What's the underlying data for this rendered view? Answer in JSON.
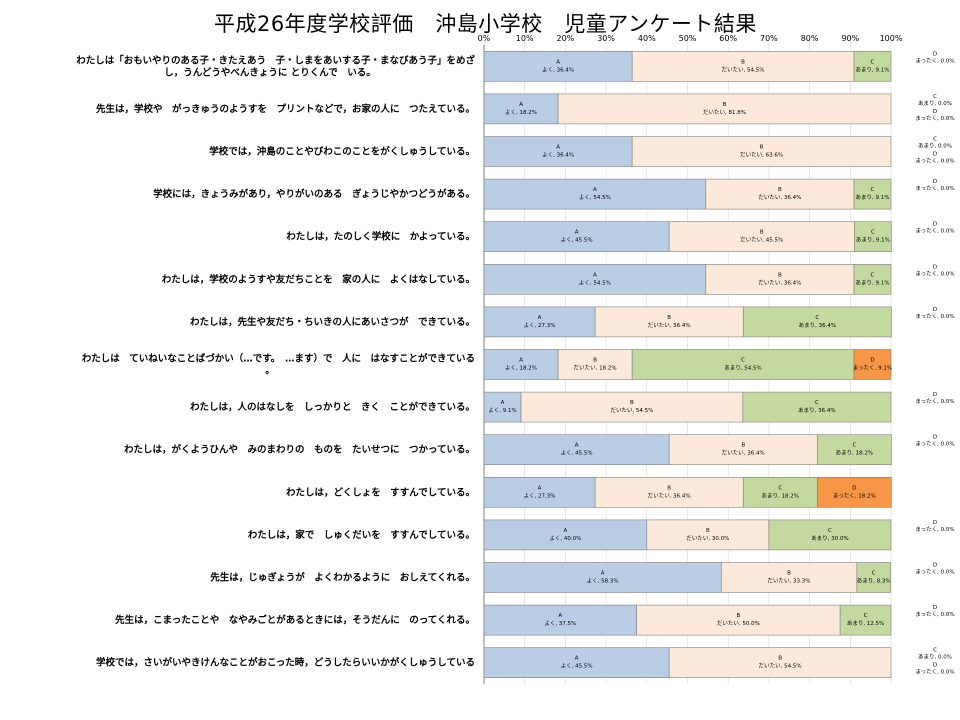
{
  "title": "平成26年度学校評価　沖島小学校　児童アンケート結果",
  "chart_data": {
    "type": "bar",
    "orientation": "horizontal",
    "stacked": "percent",
    "title": "平成26年度学校評価　沖島小学校　児童アンケート結果",
    "xlim": [
      0,
      100
    ],
    "x_ticks": [
      "0%",
      "10%",
      "20%",
      "30%",
      "40%",
      "50%",
      "60%",
      "70%",
      "80%",
      "90%",
      "100%"
    ],
    "colors": {
      "A": "#b9cde5",
      "B": "#fce9d9",
      "C": "#c4d9a0",
      "D": "#f79646"
    },
    "categories": [
      "わたしは「おもいやりのある子・きたえあう　子・しまをあいする子・まなびあう子」をめざし，うんどうやべんきょうに とりくんで　いる。",
      "先生は，学校や　がっきゅうのようすを　プリントなどで，お家の人に　つたえている。",
      "学校では，沖島のことやびわこのことをがくしゅうしている。",
      "学校には，きょうみがあり，やりがいのある　ぎょうじやかつどうがある。",
      "わたしは，たのしく学校に　かよっている。",
      "わたしは，学校のようすや友だちことを　家の人に　よくはなしている。",
      "わたしは，先生や友だち・ちいきの人にあいさつが　できている。",
      "わたしは　ていねいなことばづかい（…です。　…ます）で　人に　はなすことができている。",
      "わたしは，人のはなしを　しっかりと　きく　ことができている。",
      "わたしは，がくようひんや　みのまわりの　ものを　たいせつに　つかっている。",
      "わたしは，どくしょを　すすんでしている。",
      "わたしは，家で　しゅくだいを　すすんでしている。",
      "先生は，じゅぎょうが　よくわかるように　おしえてくれる。",
      "先生は，こまったことや　なやみごとがあるときには，そうだんに　のってくれる。",
      "学校では，さいがいやきけんなことがおこった時，どうしたらいいかがくしゅうしている"
    ],
    "series": [
      {
        "name": "A",
        "values": [
          36.4,
          18.2,
          36.4,
          54.5,
          45.5,
          54.5,
          27.3,
          18.2,
          9.1,
          45.5,
          27.3,
          40.0,
          58.3,
          37.5,
          45.5
        ]
      },
      {
        "name": "B",
        "values": [
          54.5,
          81.8,
          63.6,
          36.4,
          45.5,
          36.4,
          36.4,
          18.2,
          54.5,
          36.4,
          36.4,
          30.0,
          33.3,
          50.0,
          54.5
        ]
      },
      {
        "name": "C",
        "values": [
          9.1,
          0.0,
          0.0,
          9.1,
          9.1,
          9.1,
          36.4,
          54.5,
          36.4,
          18.2,
          18.2,
          30.0,
          8.3,
          12.5,
          0.0
        ]
      },
      {
        "name": "D",
        "values": [
          0.0,
          0.0,
          0.0,
          0.0,
          0.0,
          0.0,
          0.0,
          9.1,
          0.0,
          0.0,
          18.2,
          0.0,
          0.0,
          0.0,
          0.0
        ]
      }
    ],
    "segment_labels": {
      "A": "よく",
      "B": "だいたい",
      "C": "あまり",
      "D": "まったく"
    },
    "grid": true,
    "legend": "none"
  }
}
